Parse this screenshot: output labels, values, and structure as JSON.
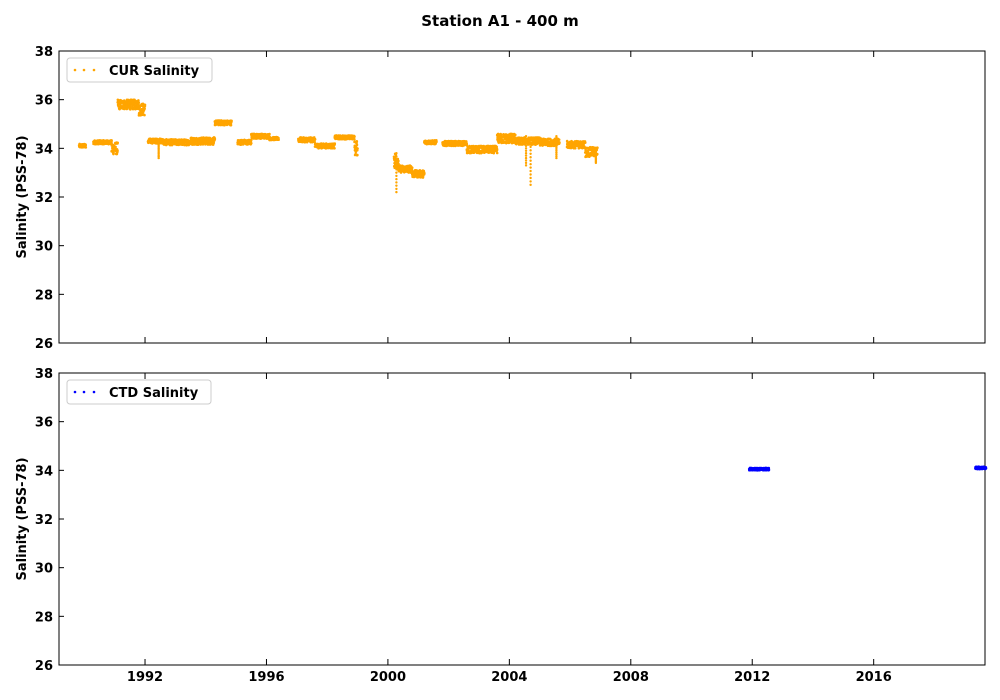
{
  "chart_data": {
    "title": "Station A1 - 400 m",
    "type": "scatter",
    "xlim": [
      "1989-03-01",
      "2019-09-01"
    ],
    "x_ticks": [
      "1992",
      "1996",
      "2000",
      "2004",
      "2008",
      "2012",
      "2016"
    ],
    "grid": false,
    "panels": [
      {
        "ylabel": "Salinity (PSS-78)",
        "ylim": [
          26,
          38
        ],
        "y_ticks": [
          "26",
          "28",
          "30",
          "32",
          "34",
          "36",
          "38"
        ],
        "legend": "top-left",
        "show_x_tick_labels": false,
        "series": [
          {
            "name": "CUR Salinity",
            "color": "#ffa500",
            "marker": "dots",
            "segments": [
              {
                "start": "1989.83",
                "end": "1990.05",
                "mean": 34.1,
                "spread": 0.08
              },
              {
                "start": "1990.30",
                "end": "1990.90",
                "mean": 34.25,
                "spread": 0.08
              },
              {
                "start": "1990.90",
                "end": "1991.10",
                "mean": 34.0,
                "spread": 0.25
              },
              {
                "start": "1991.10",
                "end": "1991.80",
                "mean": 35.8,
                "spread": 0.2
              },
              {
                "start": "1991.80",
                "end": "1992.00",
                "mean": 35.6,
                "spread": 0.25
              },
              {
                "start": "1992.10",
                "end": "1992.60",
                "mean": 34.3,
                "spread": 0.1
              },
              {
                "start": "1992.60",
                "end": "1993.50",
                "mean": 34.25,
                "spread": 0.12
              },
              {
                "start": "1993.50",
                "end": "1994.30",
                "mean": 34.3,
                "spread": 0.15
              },
              {
                "start": "1994.30",
                "end": "1994.85",
                "mean": 35.05,
                "spread": 0.1
              },
              {
                "start": "1995.05",
                "end": "1995.50",
                "mean": 34.25,
                "spread": 0.1
              },
              {
                "start": "1995.50",
                "end": "1996.10",
                "mean": 34.5,
                "spread": 0.1
              },
              {
                "start": "1996.10",
                "end": "1996.40",
                "mean": 34.4,
                "spread": 0.06
              },
              {
                "start": "1997.05",
                "end": "1997.60",
                "mean": 34.35,
                "spread": 0.1
              },
              {
                "start": "1997.60",
                "end": "1998.25",
                "mean": 34.1,
                "spread": 0.1
              },
              {
                "start": "1998.25",
                "end": "1998.90",
                "mean": 34.45,
                "spread": 0.08
              },
              {
                "start": "1998.90",
                "end": "1999.00",
                "mean": 34.0,
                "spread": 0.3
              },
              {
                "start": "2000.20",
                "end": "2000.35",
                "mean": 33.5,
                "spread": 0.35
              },
              {
                "start": "2000.35",
                "end": "2000.80",
                "mean": 33.15,
                "spread": 0.15
              },
              {
                "start": "2000.80",
                "end": "2001.20",
                "mean": 32.95,
                "spread": 0.15
              },
              {
                "start": "2001.20",
                "end": "2001.60",
                "mean": 34.25,
                "spread": 0.08
              },
              {
                "start": "2001.80",
                "end": "2002.60",
                "mean": 34.2,
                "spread": 0.1
              },
              {
                "start": "2002.60",
                "end": "2003.60",
                "mean": 33.95,
                "spread": 0.15
              },
              {
                "start": "2003.60",
                "end": "2004.20",
                "mean": 34.4,
                "spread": 0.2
              },
              {
                "start": "2004.20",
                "end": "2005.00",
                "mean": 34.3,
                "spread": 0.15
              },
              {
                "start": "2005.00",
                "end": "2005.65",
                "mean": 34.25,
                "spread": 0.15
              },
              {
                "start": "2005.90",
                "end": "2006.50",
                "mean": 34.15,
                "spread": 0.15
              },
              {
                "start": "2006.50",
                "end": "2006.90",
                "mean": 33.85,
                "spread": 0.2
              }
            ],
            "spikes": [
              {
                "x": "1992.45",
                "y": [
                  33.6,
                  34.3
                ]
              },
              {
                "x": "2000.28",
                "y": [
                  32.2,
                  33.8
                ]
              },
              {
                "x": "2004.55",
                "y": [
                  33.3,
                  34.5
                ]
              },
              {
                "x": "2004.70",
                "y": [
                  32.5,
                  34.2
                ]
              },
              {
                "x": "2005.55",
                "y": [
                  33.6,
                  34.5
                ]
              },
              {
                "x": "2006.85",
                "y": [
                  33.4,
                  34.0
                ]
              }
            ]
          }
        ]
      },
      {
        "ylabel": "Salinity (PSS-78)",
        "ylim": [
          26,
          38
        ],
        "y_ticks": [
          "26",
          "28",
          "30",
          "32",
          "34",
          "36",
          "38"
        ],
        "legend": "top-left",
        "show_x_tick_labels": true,
        "series": [
          {
            "name": "CTD Salinity",
            "color": "#0000ff",
            "marker": "dots",
            "segments": [
              {
                "start": "2011.90",
                "end": "2012.55",
                "mean": 34.05,
                "spread": 0.05
              },
              {
                "start": "2019.35",
                "end": "2019.70",
                "mean": 34.1,
                "spread": 0.05
              }
            ],
            "spikes": []
          }
        ]
      }
    ]
  }
}
